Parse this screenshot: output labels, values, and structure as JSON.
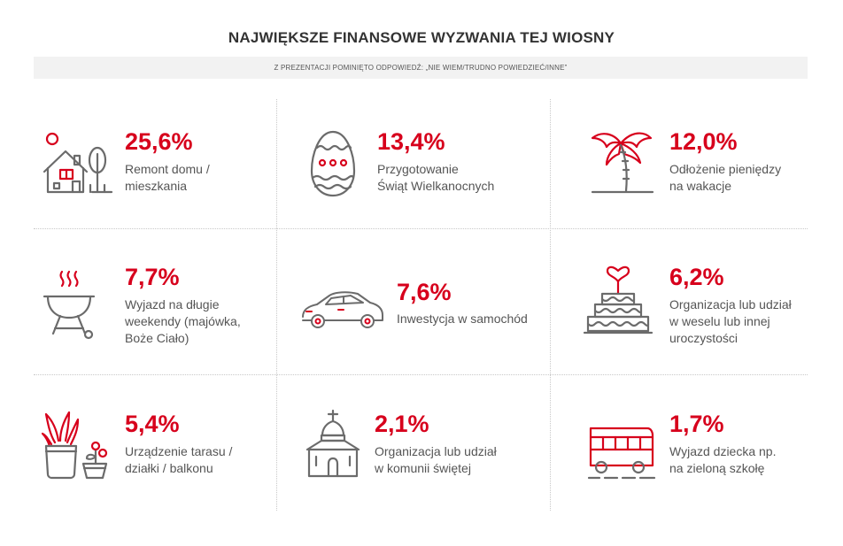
{
  "title": "NAJWIĘKSZE FINANSOWE WYZWANIA TEJ WIOSNY",
  "subtitle": "Z PREZENTACJI POMINIĘTO ODPOWIEDŹ: „NIE WIEM/TRUDNO POWIEDZIEĆ/INNE”",
  "colors": {
    "accent": "#d7001c",
    "icon_gray": "#6b6b6b",
    "text": "#555555"
  },
  "chart_data": {
    "type": "table",
    "title": "NAJWIĘKSZE FINANSOWE WYZWANIA TEJ WIOSNY",
    "unit": "%",
    "items": [
      {
        "value": 25.6,
        "value_label": "25,6%",
        "label_lines": [
          "Remont domu /",
          "mieszkania"
        ],
        "icon": "house-icon"
      },
      {
        "value": 13.4,
        "value_label": "13,4%",
        "label_lines": [
          "Przygotowanie",
          "Świąt Wielkanocnych"
        ],
        "icon": "easter-egg-icon"
      },
      {
        "value": 12.0,
        "value_label": "12,0%",
        "label_lines": [
          "Odłożenie pieniędzy",
          "na wakacje"
        ],
        "icon": "palm-tree-icon"
      },
      {
        "value": 7.7,
        "value_label": "7,7%",
        "label_lines": [
          "Wyjazd na długie",
          "weekendy (majówka,",
          "Boże Ciało)"
        ],
        "icon": "grill-icon"
      },
      {
        "value": 7.6,
        "value_label": "7,6%",
        "label_lines": [
          "Inwestycja w samochód"
        ],
        "icon": "car-icon"
      },
      {
        "value": 6.2,
        "value_label": "6,2%",
        "label_lines": [
          "Organizacja lub udział",
          "w weselu lub innej",
          "uroczystości"
        ],
        "icon": "wedding-cake-icon"
      },
      {
        "value": 5.4,
        "value_label": "5,4%",
        "label_lines": [
          "Urządzenie tarasu /",
          "działki / balkonu"
        ],
        "icon": "plants-icon"
      },
      {
        "value": 2.1,
        "value_label": "2,1%",
        "label_lines": [
          "Organizacja lub udział",
          "w komunii świętej"
        ],
        "icon": "church-icon"
      },
      {
        "value": 1.7,
        "value_label": "1,7%",
        "label_lines": [
          "Wyjazd dziecka np.",
          "na zieloną szkołę"
        ],
        "icon": "bus-icon"
      }
    ]
  }
}
